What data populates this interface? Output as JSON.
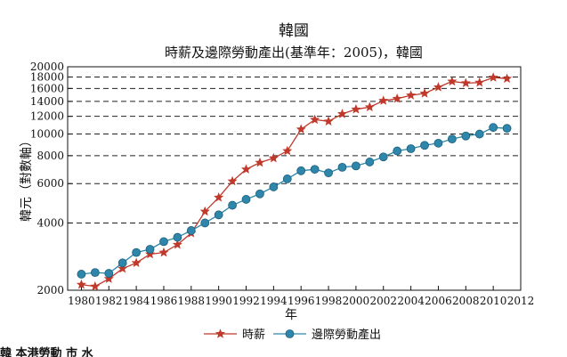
{
  "chart_data": {
    "type": "line",
    "title": "韓國",
    "subtitle": "時薪及邊際勞動產出(基準年：2005)，韓國",
    "xlabel": "年",
    "ylabel": "韓元（對數軸）",
    "y_scale": "log",
    "xlim": [
      1979,
      2012
    ],
    "ylim": [
      2000,
      20000
    ],
    "x_ticks": [
      1980,
      1982,
      1984,
      1986,
      1988,
      1990,
      1992,
      1994,
      1996,
      1998,
      2000,
      2002,
      2004,
      2006,
      2008,
      2010,
      2012
    ],
    "y_ticks": [
      2000,
      4000,
      6000,
      8000,
      10000,
      12000,
      14000,
      16000,
      18000,
      20000
    ],
    "grid": "horizontal-dashed",
    "legend_position": "bottom",
    "x": [
      1980,
      1981,
      1982,
      1983,
      1984,
      1985,
      1986,
      1987,
      1988,
      1989,
      1990,
      1991,
      1992,
      1993,
      1994,
      1995,
      1996,
      1997,
      1998,
      1999,
      2000,
      2001,
      2002,
      2003,
      2004,
      2005,
      2006,
      2007,
      2008,
      2009,
      2010,
      2011
    ],
    "series": [
      {
        "name": "時薪",
        "color": "#c0392b",
        "marker": "star",
        "values": [
          2120,
          2080,
          2250,
          2500,
          2650,
          2900,
          2950,
          3200,
          3600,
          4500,
          5200,
          6150,
          6950,
          7450,
          7800,
          8400,
          10500,
          11600,
          11400,
          12300,
          12900,
          13200,
          14100,
          14400,
          14900,
          15200,
          16200,
          17200,
          16900,
          17000,
          17900,
          17700
        ]
      },
      {
        "name": "邊際勞動產出",
        "color": "#2e86ab",
        "marker": "circle",
        "values": [
          2360,
          2400,
          2380,
          2650,
          2950,
          3050,
          3300,
          3450,
          3700,
          4000,
          4350,
          4800,
          5100,
          5400,
          5800,
          6300,
          6850,
          6950,
          6700,
          7100,
          7200,
          7500,
          7900,
          8400,
          8600,
          8900,
          9100,
          9500,
          9800,
          10000,
          10700,
          10600
        ]
      }
    ]
  },
  "footer": {
    "partial_text": "韓  本港勞動  市  水"
  }
}
